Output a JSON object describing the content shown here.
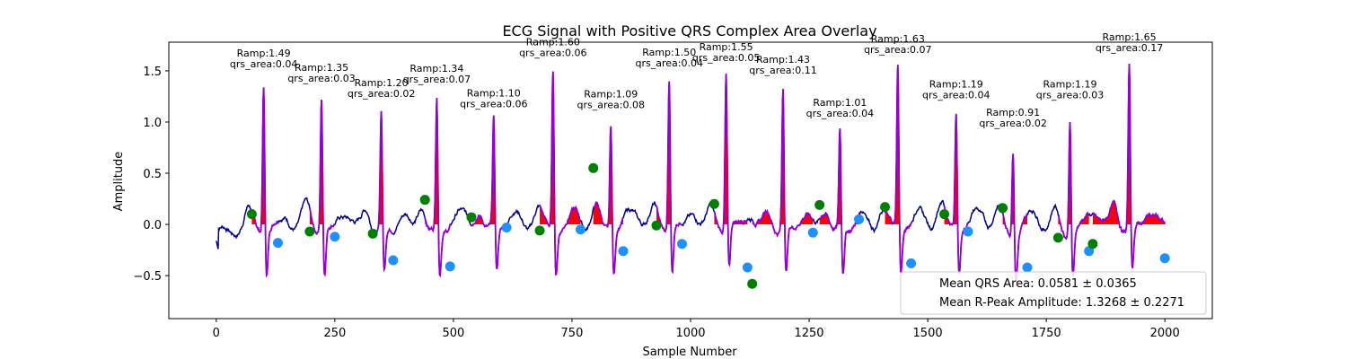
{
  "chart_data": {
    "type": "line",
    "title": "ECG Signal with Positive QRS Complex Area Overlay",
    "xlabel": "Sample Number",
    "ylabel": "Amplitude",
    "xlim": [
      -100,
      2100
    ],
    "ylim": [
      -0.92,
      1.78
    ],
    "x_ticks": [
      0,
      250,
      500,
      750,
      1000,
      1250,
      1500,
      1750,
      2000
    ],
    "y_ticks": [
      -0.5,
      0.0,
      0.5,
      1.0,
      1.5
    ],
    "x_tick_labels": [
      "0",
      "250",
      "500",
      "750",
      "1000",
      "1250",
      "1500",
      "1750",
      "2000"
    ],
    "y_tick_labels": [
      "−0.5",
      "0.0",
      "0.5",
      "1.0",
      "1.5"
    ],
    "grid": false,
    "colors": {
      "signal": "#00008b",
      "qrs_segment": "#9400d3",
      "qrs_area_fill": "#ff0000",
      "onset_marker": "#008000",
      "offset_marker": "#1e90ff"
    },
    "series": [
      {
        "role": "ecg-signal",
        "beats": [
          {
            "r": 100,
            "amp": 1.49,
            "area_label": "qrs_area:0.04",
            "amp_label": "Ramp:1.49",
            "onset": [
              75,
              0.1
            ],
            "offset": [
              130,
              -0.18
            ]
          },
          {
            "r": 222,
            "amp": 1.35,
            "area_label": "qrs_area:0.03",
            "amp_label": "Ramp:1.35",
            "onset": [
              197,
              -0.07
            ],
            "offset": [
              250,
              -0.12
            ]
          },
          {
            "r": 348,
            "amp": 1.2,
            "area_label": "qrs_area:0.02",
            "amp_label": "Ramp:1.20",
            "onset": [
              330,
              -0.09
            ],
            "offset": [
              373,
              -0.35
            ]
          },
          {
            "r": 465,
            "amp": 1.34,
            "area_label": "qrs_area:0.07",
            "amp_label": "Ramp:1.34",
            "onset": [
              440,
              0.24
            ],
            "offset": [
              493,
              -0.41
            ]
          },
          {
            "r": 585,
            "amp": 1.1,
            "area_label": "qrs_area:0.06",
            "amp_label": "Ramp:1.10",
            "onset": [
              538,
              0.07
            ],
            "offset": [
              612,
              -0.03
            ]
          },
          {
            "r": 710,
            "amp": 1.6,
            "area_label": "qrs_area:0.06",
            "amp_label": "Ramp:1.60",
            "onset": [
              682,
              -0.06
            ],
            "offset": [
              768,
              -0.05
            ]
          },
          {
            "r": 832,
            "amp": 1.09,
            "area_label": "qrs_area:0.08",
            "amp_label": "Ramp:1.09",
            "onset": [
              795,
              0.55
            ],
            "offset": [
              858,
              -0.26
            ]
          },
          {
            "r": 955,
            "amp": 1.5,
            "area_label": "qrs_area:0.04",
            "amp_label": "Ramp:1.50",
            "onset": [
              928,
              -0.01
            ],
            "offset": [
              982,
              -0.19
            ]
          },
          {
            "r": 1075,
            "amp": 1.55,
            "area_label": "qrs_area:0.05",
            "amp_label": "Ramp:1.55",
            "onset": [
              1050,
              0.2
            ],
            "offset": [
              1120,
              -0.42
            ]
          },
          {
            "r": 1195,
            "amp": 1.43,
            "area_label": "qrs_area:0.11",
            "amp_label": "Ramp:1.43",
            "onset": [
              1130,
              -0.58
            ],
            "offset": [
              1258,
              -0.08
            ]
          },
          {
            "r": 1315,
            "amp": 1.01,
            "area_label": "qrs_area:0.04",
            "amp_label": "Ramp:1.01",
            "onset": [
              1272,
              0.19
            ],
            "offset": [
              1355,
              0.05
            ]
          },
          {
            "r": 1437,
            "amp": 1.63,
            "area_label": "qrs_area:0.07",
            "amp_label": "Ramp:1.63",
            "onset": [
              1410,
              0.17
            ],
            "offset": [
              1465,
              -0.38
            ]
          },
          {
            "r": 1560,
            "amp": 1.19,
            "area_label": "qrs_area:0.04",
            "amp_label": "Ramp:1.19",
            "onset": [
              1535,
              0.1
            ],
            "offset": [
              1585,
              -0.07
            ]
          },
          {
            "r": 1680,
            "amp": 0.91,
            "area_label": "qrs_area:0.02",
            "amp_label": "Ramp:0.91",
            "onset": [
              1658,
              0.16
            ],
            "offset": [
              1710,
              -0.42
            ]
          },
          {
            "r": 1800,
            "amp": 1.19,
            "area_label": "qrs_area:0.03",
            "amp_label": "Ramp:1.19",
            "onset": [
              1775,
              -0.13
            ],
            "offset": [
              1840,
              -0.26
            ]
          },
          {
            "r": 1925,
            "amp": 1.65,
            "area_label": "qrs_area:0.17",
            "amp_label": "Ramp:1.65",
            "onset": [
              1848,
              -0.19
            ],
            "offset": [
              2000,
              -0.33
            ]
          }
        ]
      }
    ],
    "legend": {
      "placement": "lower right",
      "entries": [
        "Mean QRS Area: 0.0581 ± 0.0365",
        "Mean R-Peak Amplitude: 1.3268 ± 0.2271"
      ]
    }
  }
}
